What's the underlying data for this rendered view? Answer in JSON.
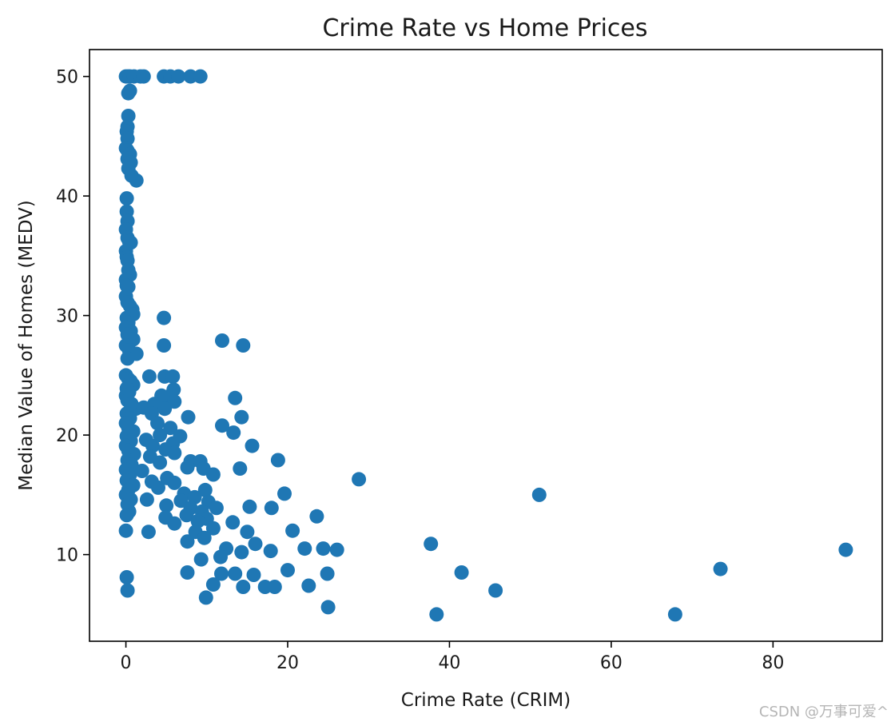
{
  "chart_data": {
    "type": "scatter",
    "title": "Crime Rate vs Home Prices",
    "xlabel": "Crime Rate (CRIM)",
    "ylabel": "Median Value of Homes (MEDV)",
    "xlim": [
      -4.5,
      93.5
    ],
    "ylim": [
      2.75,
      52.25
    ],
    "xticks": [
      0,
      20,
      40,
      60,
      80
    ],
    "yticks": [
      10,
      20,
      30,
      40,
      50
    ],
    "grid": false,
    "color": "#1f77b4",
    "points": [
      [
        0.0,
        50
      ],
      [
        0.3,
        50
      ],
      [
        0.5,
        50
      ],
      [
        1.0,
        50
      ],
      [
        1.8,
        50
      ],
      [
        2.2,
        50
      ],
      [
        4.7,
        50
      ],
      [
        5.5,
        50
      ],
      [
        6.5,
        50
      ],
      [
        8.0,
        50
      ],
      [
        9.2,
        50
      ],
      [
        0.3,
        48.6
      ],
      [
        0.5,
        48.8
      ],
      [
        0.3,
        46.7
      ],
      [
        0.2,
        45.8
      ],
      [
        0.1,
        45.4
      ],
      [
        0.2,
        44.8
      ],
      [
        0.0,
        44.0
      ],
      [
        0.2,
        43.8
      ],
      [
        0.5,
        43.5
      ],
      [
        0.2,
        43.1
      ],
      [
        0.6,
        42.8
      ],
      [
        0.3,
        42.3
      ],
      [
        0.7,
        41.7
      ],
      [
        1.3,
        41.3
      ],
      [
        0.1,
        39.8
      ],
      [
        0.1,
        38.7
      ],
      [
        0.2,
        37.9
      ],
      [
        0.0,
        37.2
      ],
      [
        0.2,
        36.5
      ],
      [
        0.4,
        36.2
      ],
      [
        0.6,
        36.1
      ],
      [
        0.0,
        35.4
      ],
      [
        0.1,
        34.9
      ],
      [
        0.2,
        34.6
      ],
      [
        0.3,
        33.8
      ],
      [
        0.5,
        33.4
      ],
      [
        0.0,
        33.0
      ],
      [
        0.1,
        32.5
      ],
      [
        0.3,
        32.4
      ],
      [
        0.0,
        31.6
      ],
      [
        0.2,
        31.1
      ],
      [
        0.5,
        30.8
      ],
      [
        0.8,
        30.5
      ],
      [
        0.9,
        30.1
      ],
      [
        0.1,
        29.8
      ],
      [
        0.3,
        29.4
      ],
      [
        0.0,
        29.0
      ],
      [
        0.6,
        28.7
      ],
      [
        0.2,
        28.4
      ],
      [
        0.9,
        28.0
      ],
      [
        0.0,
        27.5
      ],
      [
        0.4,
        27.1
      ],
      [
        1.3,
        26.8
      ],
      [
        0.2,
        26.4
      ],
      [
        0.0,
        25.0
      ],
      [
        0.3,
        24.7
      ],
      [
        0.6,
        24.5
      ],
      [
        0.9,
        24.2
      ],
      [
        0.1,
        23.9
      ],
      [
        0.4,
        23.6
      ],
      [
        0.0,
        23.3
      ],
      [
        0.2,
        22.9
      ],
      [
        0.7,
        22.6
      ],
      [
        1.2,
        22.2
      ],
      [
        0.1,
        21.8
      ],
      [
        0.5,
        21.4
      ],
      [
        0.0,
        21.0
      ],
      [
        0.3,
        20.6
      ],
      [
        0.9,
        20.3
      ],
      [
        0.1,
        19.9
      ],
      [
        0.6,
        19.5
      ],
      [
        0.0,
        19.1
      ],
      [
        0.3,
        18.7
      ],
      [
        1.0,
        18.4
      ],
      [
        0.2,
        17.9
      ],
      [
        0.7,
        17.5
      ],
      [
        0.0,
        17.1
      ],
      [
        0.5,
        16.7
      ],
      [
        0.1,
        16.2
      ],
      [
        0.9,
        15.8
      ],
      [
        0.3,
        15.4
      ],
      [
        0.0,
        15.0
      ],
      [
        0.6,
        14.6
      ],
      [
        0.2,
        14.2
      ],
      [
        0.4,
        13.6
      ],
      [
        0.1,
        13.3
      ],
      [
        0.0,
        12.0
      ],
      [
        0.1,
        8.1
      ],
      [
        0.2,
        7.0
      ],
      [
        4.7,
        29.8
      ],
      [
        4.7,
        27.5
      ],
      [
        11.9,
        27.9
      ],
      [
        14.5,
        27.5
      ],
      [
        2.9,
        24.9
      ],
      [
        4.8,
        24.9
      ],
      [
        5.8,
        24.9
      ],
      [
        5.9,
        23.8
      ],
      [
        4.4,
        23.3
      ],
      [
        5.2,
        23.2
      ],
      [
        6.0,
        22.8
      ],
      [
        3.5,
        22.6
      ],
      [
        4.8,
        22.2
      ],
      [
        2.2,
        22.3
      ],
      [
        3.2,
        21.8
      ],
      [
        7.7,
        21.5
      ],
      [
        3.9,
        21.0
      ],
      [
        5.5,
        20.6
      ],
      [
        4.2,
        20.0
      ],
      [
        6.7,
        19.9
      ],
      [
        2.5,
        19.6
      ],
      [
        5.8,
        19.3
      ],
      [
        3.3,
        19.1
      ],
      [
        4.9,
        18.8
      ],
      [
        6.0,
        18.5
      ],
      [
        3.0,
        18.2
      ],
      [
        4.2,
        17.7
      ],
      [
        8.0,
        17.8
      ],
      [
        9.2,
        17.8
      ],
      [
        7.6,
        17.3
      ],
      [
        2.0,
        17.0
      ],
      [
        9.6,
        17.2
      ],
      [
        10.8,
        16.7
      ],
      [
        5.1,
        16.4
      ],
      [
        3.2,
        16.1
      ],
      [
        6.0,
        16.0
      ],
      [
        4.0,
        15.6
      ],
      [
        7.2,
        15.1
      ],
      [
        9.8,
        15.4
      ],
      [
        8.5,
        14.8
      ],
      [
        2.6,
        14.6
      ],
      [
        6.8,
        14.5
      ],
      [
        10.2,
        14.4
      ],
      [
        5.0,
        14.1
      ],
      [
        8.0,
        13.9
      ],
      [
        11.2,
        13.9
      ],
      [
        9.4,
        13.6
      ],
      [
        7.5,
        13.3
      ],
      [
        4.9,
        13.1
      ],
      [
        10.0,
        13.0
      ],
      [
        8.9,
        12.8
      ],
      [
        6.0,
        12.6
      ],
      [
        10.8,
        12.2
      ],
      [
        2.8,
        11.9
      ],
      [
        8.6,
        11.9
      ],
      [
        9.7,
        11.4
      ],
      [
        7.6,
        11.1
      ],
      [
        9.3,
        9.6
      ],
      [
        7.6,
        8.5
      ],
      [
        9.9,
        6.4
      ],
      [
        11.9,
        20.8
      ],
      [
        13.3,
        20.2
      ],
      [
        13.5,
        23.1
      ],
      [
        14.3,
        21.5
      ],
      [
        15.6,
        19.1
      ],
      [
        18.8,
        17.9
      ],
      [
        14.1,
        17.2
      ],
      [
        19.6,
        15.1
      ],
      [
        15.3,
        14.0
      ],
      [
        18.0,
        13.9
      ],
      [
        13.2,
        12.7
      ],
      [
        15.0,
        11.9
      ],
      [
        16.0,
        10.9
      ],
      [
        20.6,
        12.0
      ],
      [
        22.1,
        10.5
      ],
      [
        23.6,
        13.2
      ],
      [
        24.4,
        10.5
      ],
      [
        26.1,
        10.4
      ],
      [
        17.9,
        10.3
      ],
      [
        12.4,
        10.5
      ],
      [
        14.3,
        10.2
      ],
      [
        11.7,
        9.8
      ],
      [
        13.5,
        8.4
      ],
      [
        15.8,
        8.3
      ],
      [
        20.0,
        8.7
      ],
      [
        24.9,
        8.4
      ],
      [
        14.5,
        7.3
      ],
      [
        17.2,
        7.3
      ],
      [
        18.4,
        7.3
      ],
      [
        22.6,
        7.4
      ],
      [
        11.8,
        8.4
      ],
      [
        10.8,
        7.5
      ],
      [
        25.0,
        5.6
      ],
      [
        28.8,
        16.3
      ],
      [
        37.7,
        10.9
      ],
      [
        38.4,
        5.0
      ],
      [
        41.5,
        8.5
      ],
      [
        45.7,
        7.0
      ],
      [
        51.1,
        15.0
      ],
      [
        67.9,
        5.0
      ],
      [
        73.5,
        8.8
      ],
      [
        89.0,
        10.4
      ]
    ]
  },
  "watermark": "CSDN @万事可爱^"
}
